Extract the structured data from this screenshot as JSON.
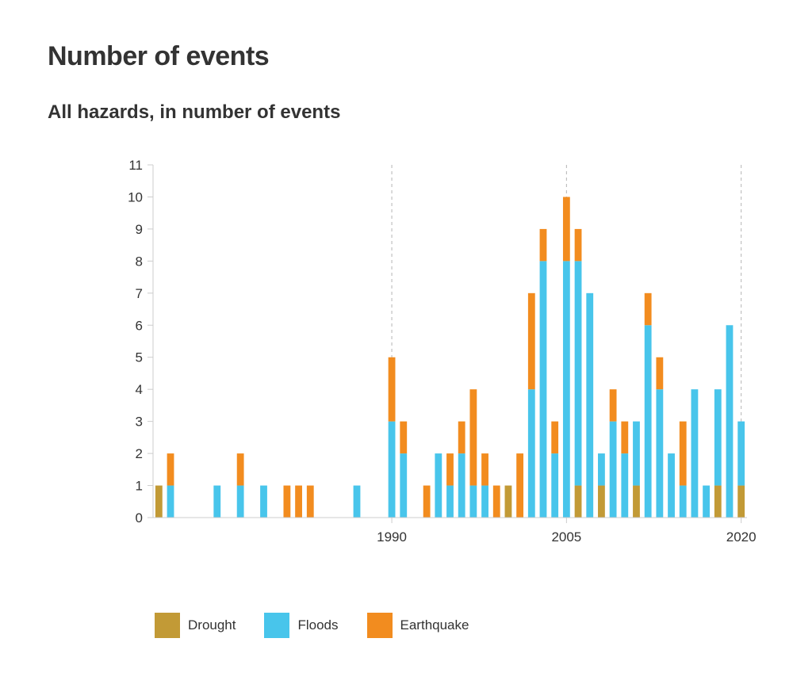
{
  "title": "Number of events",
  "subtitle": "All hazards, in number of events",
  "colors": {
    "drought": "#c29a36",
    "floods": "#48c5eb",
    "earthquake": "#f28c1f"
  },
  "chart_data": {
    "type": "bar",
    "stacked": true,
    "title": "Number of events",
    "subtitle": "All hazards, in number of events",
    "xlabel": "",
    "ylabel": "",
    "ylim": [
      0,
      11
    ],
    "yticks": [
      0,
      1,
      2,
      3,
      4,
      5,
      6,
      7,
      8,
      9,
      10,
      11
    ],
    "xlim": [
      1969.5,
      2020.5
    ],
    "xticks": [
      1990,
      2005,
      2020
    ],
    "vertical_reference_lines": [
      1990,
      2005,
      2020
    ],
    "x": [
      1970,
      1971,
      1975,
      1977,
      1979,
      1981,
      1982,
      1983,
      1987,
      1990,
      1991,
      1993,
      1994,
      1995,
      1996,
      1997,
      1998,
      1999,
      2000,
      2001,
      2002,
      2003,
      2004,
      2005,
      2006,
      2007,
      2008,
      2009,
      2010,
      2011,
      2012,
      2013,
      2014,
      2015,
      2016,
      2017,
      2018,
      2019,
      2020
    ],
    "series": [
      {
        "name": "Drought",
        "values": [
          1,
          0,
          0,
          0,
          0,
          0,
          0,
          0,
          0,
          0,
          0,
          0,
          0,
          0,
          0,
          0,
          0,
          0,
          1,
          0,
          0,
          0,
          0,
          0,
          1,
          0,
          1,
          0,
          0,
          1,
          0,
          0,
          0,
          0,
          0,
          0,
          1,
          0,
          1
        ]
      },
      {
        "name": "Floods",
        "values": [
          0,
          1,
          1,
          1,
          1,
          0,
          0,
          0,
          1,
          3,
          2,
          0,
          2,
          1,
          2,
          1,
          1,
          0,
          0,
          0,
          4,
          8,
          2,
          8,
          7,
          7,
          1,
          3,
          2,
          2,
          6,
          4,
          2,
          1,
          4,
          1,
          3,
          6,
          2
        ]
      },
      {
        "name": "Earthquake",
        "values": [
          0,
          1,
          0,
          1,
          0,
          1,
          1,
          1,
          0,
          2,
          1,
          1,
          0,
          1,
          1,
          3,
          1,
          1,
          0,
          2,
          3,
          1,
          1,
          2,
          1,
          0,
          0,
          1,
          1,
          0,
          1,
          1,
          0,
          2,
          0,
          0,
          0,
          0,
          0
        ]
      }
    ],
    "legend": [
      "Drought",
      "Floods",
      "Earthquake"
    ],
    "legend_position": "bottom-left",
    "grid": false
  }
}
